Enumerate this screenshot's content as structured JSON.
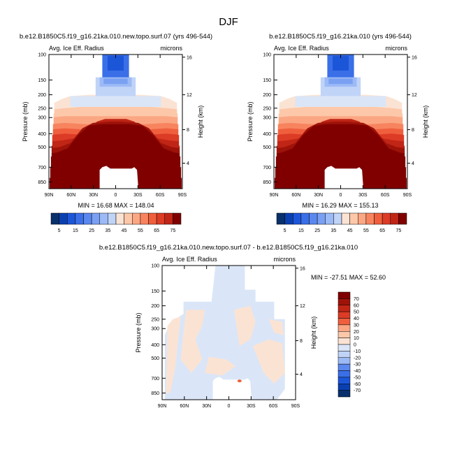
{
  "page_title": "DJF",
  "chart_data": [
    {
      "type": "heatmap",
      "title": "b.e12.B1850C5.f19_g16.21ka.010.new.topo.surf.07 (yrs 496-544)",
      "left_label": "Avg. Ice Eff. Radius",
      "right_label": "microns",
      "ylabel": "Pressure (mb)",
      "ylabel_right": "Height (km)",
      "x_ticks": [
        "90N",
        "60N",
        "30N",
        "0",
        "30S",
        "60S",
        "90S"
      ],
      "y_ticks": [
        "100",
        "150",
        "200",
        "250",
        "300",
        "400",
        "500",
        "700",
        "850"
      ],
      "y2_ticks": [
        "16",
        "12",
        "8",
        "4"
      ],
      "stats": "MIN = 16.68   MAX = 148.04",
      "min": 16.68,
      "max": 148.04,
      "colorbar_labels": [
        "5",
        "15",
        "25",
        "35",
        "45",
        "55",
        "65",
        "75"
      ],
      "colorbar_levels": [
        5,
        10,
        15,
        20,
        25,
        30,
        35,
        40,
        45,
        50,
        55,
        60,
        65,
        70,
        75
      ]
    },
    {
      "type": "heatmap",
      "title": "b.e12.B1850C5.f19_g16.21ka.010 (yrs 496-544)",
      "left_label": "Avg. Ice Eff. Radius",
      "right_label": "microns",
      "ylabel": "Pressure (mb)",
      "ylabel_right": "Height (km)",
      "x_ticks": [
        "90N",
        "60N",
        "30N",
        "0",
        "30S",
        "60S",
        "90S"
      ],
      "y_ticks": [
        "100",
        "150",
        "200",
        "250",
        "300",
        "400",
        "500",
        "700",
        "850"
      ],
      "y2_ticks": [
        "16",
        "12",
        "8",
        "4"
      ],
      "stats": "MIN = 16.29   MAX = 155.13",
      "min": 16.29,
      "max": 155.13,
      "colorbar_labels": [
        "5",
        "15",
        "25",
        "35",
        "45",
        "55",
        "65",
        "75"
      ],
      "colorbar_levels": [
        5,
        10,
        15,
        20,
        25,
        30,
        35,
        40,
        45,
        50,
        55,
        60,
        65,
        70,
        75
      ]
    },
    {
      "type": "heatmap",
      "title": "b.e12.B1850C5.f19_g16.21ka.010.new.topo.surf.07 - b.e12.B1850C5.f19_g16.21ka.010",
      "left_label": "Avg. Ice Eff. Radius",
      "right_label": "microns",
      "ylabel": "Pressure (mb)",
      "ylabel_right": "Height (km)",
      "x_ticks": [
        "90N",
        "60N",
        "30N",
        "0",
        "30S",
        "60S",
        "90S"
      ],
      "y_ticks": [
        "100",
        "150",
        "200",
        "250",
        "300",
        "400",
        "500",
        "700",
        "850"
      ],
      "y2_ticks": [
        "16",
        "12",
        "8",
        "4"
      ],
      "stats": "MIN = -27.51   MAX =  52.60",
      "min": -27.51,
      "max": 52.6,
      "colorbar_labels": [
        "70",
        "60",
        "50",
        "40",
        "30",
        "20",
        "10",
        "0",
        "-10",
        "-20",
        "-30",
        "-40",
        "-50",
        "-60",
        "-70"
      ],
      "colorbar_levels": [
        -70,
        -60,
        -50,
        -40,
        -30,
        -20,
        -10,
        0,
        10,
        20,
        30,
        40,
        50,
        60,
        70
      ]
    }
  ],
  "colors": {
    "blue_scale": [
      "#08306b",
      "#0a3fb0",
      "#1c56d8",
      "#3a6fe8",
      "#5a88ee",
      "#7aa0f2",
      "#9cbaf5",
      "#c0d4f7",
      "#dae6f8"
    ],
    "red_scale": [
      "#fbe3d3",
      "#fcc8a9",
      "#fba784",
      "#f7845f",
      "#ef5f3d",
      "#dc3b25",
      "#c02516",
      "#9e1309",
      "#800000"
    ],
    "white": "#ffffff",
    "diff_light_blue": "#dae6f8",
    "diff_light_red": "#fbe3d3",
    "diff_red": "#ef5f3d"
  }
}
